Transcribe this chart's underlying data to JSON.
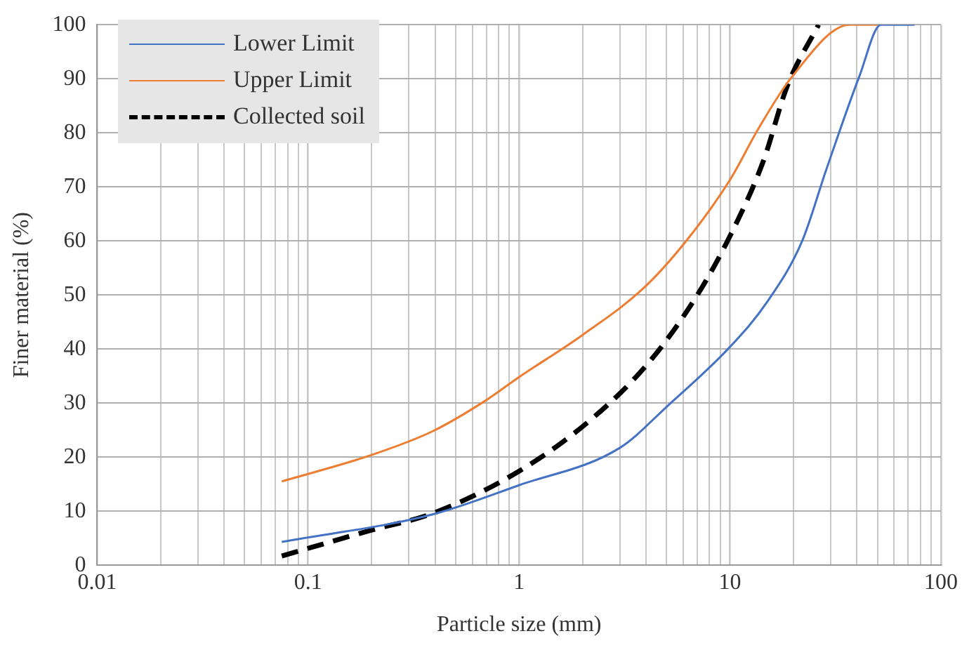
{
  "chart_data": {
    "type": "line",
    "xlabel": "Particle size (mm)",
    "ylabel": "Finer material (%)",
    "xlim": [
      0.01,
      100
    ],
    "ylim": [
      0,
      100
    ],
    "xticks": [
      0.01,
      {
        "value": 0.02,
        "label": null
      },
      {
        "value": 0.03,
        "label": null
      },
      {
        "value": 0.04,
        "label": null
      },
      {
        "value": 0.05,
        "label": null
      },
      {
        "value": 0.06,
        "label": null
      },
      {
        "value": 0.07,
        "label": null
      },
      {
        "value": 0.08,
        "label": null
      },
      {
        "value": 0.09,
        "label": null
      },
      0.1,
      {
        "value": 0.2,
        "label": null
      },
      {
        "value": 0.3,
        "label": null
      },
      {
        "value": 0.4,
        "label": null
      },
      {
        "value": 0.5,
        "label": null
      },
      {
        "value": 0.6,
        "label": null
      },
      {
        "value": 0.7,
        "label": null
      },
      {
        "value": 0.8,
        "label": null
      },
      {
        "value": 0.9,
        "label": null
      },
      1,
      {
        "value": 2,
        "label": null
      },
      {
        "value": 3,
        "label": null
      },
      {
        "value": 4,
        "label": null
      },
      {
        "value": 5,
        "label": null
      },
      {
        "value": 6,
        "label": null
      },
      {
        "value": 7,
        "label": null
      },
      {
        "value": 8,
        "label": null
      },
      {
        "value": 9,
        "label": null
      },
      10,
      {
        "value": 20,
        "label": null
      },
      {
        "value": 30,
        "label": null
      },
      {
        "value": 40,
        "label": null
      },
      {
        "value": 50,
        "label": null
      },
      {
        "value": 60,
        "label": null
      },
      {
        "value": 70,
        "label": null
      },
      {
        "value": 80,
        "label": null
      },
      {
        "value": 90,
        "label": null
      },
      100
    ],
    "yticks": [
      0,
      10,
      20,
      30,
      40,
      50,
      60,
      70,
      80,
      90,
      100
    ],
    "log": "x",
    "grid": true,
    "legend": "top left",
    "marker": "none",
    "series": [
      {
        "name": "Lower Limit",
        "color": "#4472c4",
        "line_style": "solid",
        "x": [
          0.075,
          0.39,
          1,
          3,
          5.1,
          10,
          15,
          22,
          28.5,
          41,
          52,
          75
        ],
        "values": [
          4.3,
          9.4,
          14.8,
          21.7,
          29.6,
          40.4,
          48.7,
          60,
          73,
          90.4,
          100,
          100
        ]
      },
      {
        "name": "Upper Limit",
        "color": "#ed7d31",
        "line_style": "solid",
        "x": [
          0.075,
          0.2,
          0.39,
          0.69,
          1,
          2,
          3.9,
          6.2,
          10,
          13.7,
          19.7,
          37,
          50
        ],
        "values": [
          15.5,
          20.4,
          24.8,
          30.4,
          34.8,
          42.6,
          51.3,
          60,
          71.3,
          80.9,
          90.4,
          100,
          100
        ]
      },
      {
        "name": "Collected soil",
        "color": "#000000",
        "line_style": "dashed",
        "x": [
          0.075,
          0.2,
          0.39,
          1,
          2.2,
          4.1,
          6.9,
          10,
          14.4,
          18.7,
          26.3
        ],
        "values": [
          1.7,
          6.5,
          9.6,
          17.4,
          27,
          37.4,
          49.6,
          60.9,
          74.8,
          88.7,
          100
        ]
      }
    ]
  }
}
